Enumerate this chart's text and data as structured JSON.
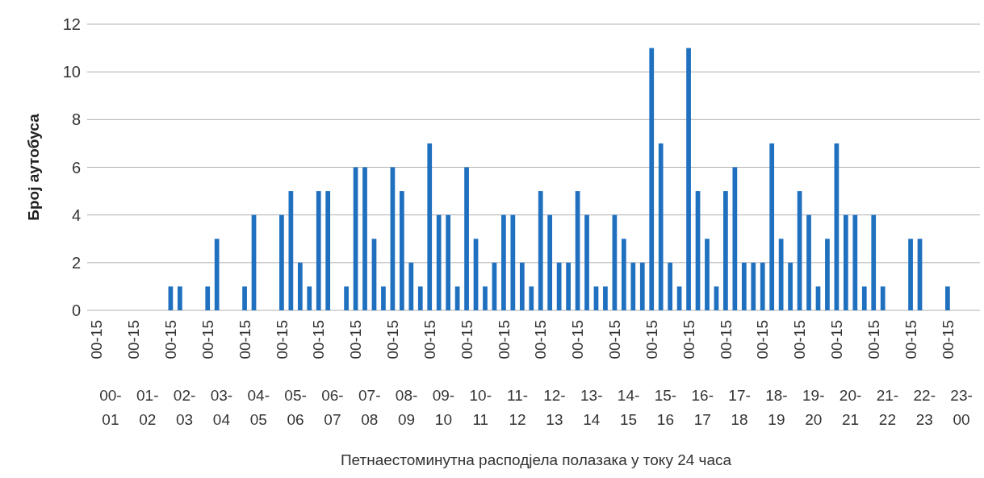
{
  "chart_data": {
    "type": "bar",
    "xlabel": "Петнаестоминутна расподјела полазака у току 24 часа",
    "ylabel": "Број аутобуса",
    "categories": [
      "00-01",
      "01-02",
      "02-03",
      "03-04",
      "04-05",
      "05-06",
      "06-07",
      "07-08",
      "08-09",
      "09-10",
      "10-11",
      "11-12",
      "12-13",
      "13-14",
      "14-15",
      "15-16",
      "16-17",
      "17-18",
      "18-19",
      "19-20",
      "20-21",
      "21-22",
      "22-23",
      "23-00"
    ],
    "series": [
      {
        "color": "#2070c0",
        "values": [
          0,
          0,
          1,
          1,
          1,
          4,
          5,
          6,
          6,
          7,
          6,
          4,
          5,
          5,
          4,
          11,
          11,
          5,
          2,
          5,
          7,
          4,
          3,
          1
        ]
      },
      {
        "color": "#2070c0",
        "values": [
          0,
          0,
          1,
          3,
          4,
          5,
          5,
          6,
          5,
          4,
          3,
          4,
          4,
          4,
          3,
          7,
          5,
          6,
          7,
          4,
          4,
          1,
          3,
          0
        ]
      },
      {
        "color": "#2070c0",
        "values": [
          0,
          0,
          0,
          0,
          0,
          2,
          0,
          3,
          2,
          4,
          1,
          2,
          2,
          1,
          2,
          2,
          3,
          2,
          3,
          1,
          4,
          0,
          0,
          0
        ]
      },
      {
        "color": "#2070c0",
        "values": [
          0,
          0,
          0,
          0,
          0,
          1,
          1,
          1,
          1,
          1,
          2,
          1,
          2,
          1,
          2,
          1,
          1,
          2,
          2,
          3,
          1,
          0,
          0,
          0
        ]
      }
    ],
    "annotations": [
      "00-15",
      "00-15",
      "00-15",
      "00-15",
      "00-15",
      "00-15",
      "00-15",
      "00-15",
      "00-15",
      "00-15",
      "00-15",
      "00-15",
      "00-15",
      "00-15",
      "00-15",
      "00-15",
      "00-15",
      "00-15",
      "00-15",
      "00-15",
      "00-15",
      "00-15",
      "00-15",
      "00-15"
    ],
    "ylim": [
      0,
      12
    ],
    "yticks": [
      0,
      2,
      4,
      6,
      8,
      10,
      12
    ],
    "grid": "y"
  }
}
